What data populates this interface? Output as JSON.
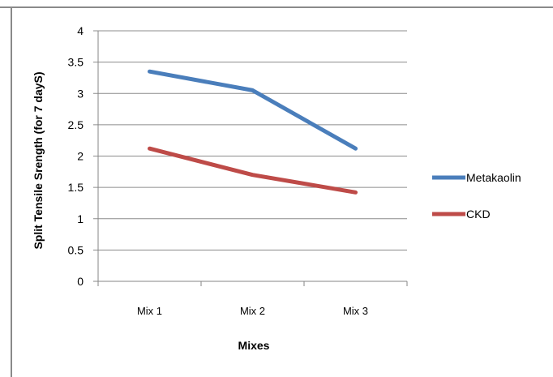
{
  "chart_data": {
    "type": "line",
    "categories": [
      "Mix 1",
      "Mix 2",
      "Mix 3"
    ],
    "series": [
      {
        "name": "Metakaolin",
        "values": [
          3.35,
          3.05,
          2.12
        ],
        "color": "#4a7ebb"
      },
      {
        "name": "CKD",
        "values": [
          2.12,
          1.7,
          1.42
        ],
        "color": "#be4b48"
      }
    ],
    "title": "",
    "xlabel": "Mixes",
    "ylabel": "Split Tensile Srength (for 7 dayS)",
    "ylim": [
      0,
      4
    ],
    "yticks": [
      "0",
      "0.5",
      "1",
      "1.5",
      "2",
      "2.5",
      "3",
      "3.5",
      "4"
    ],
    "grid": true,
    "legend": "right"
  }
}
